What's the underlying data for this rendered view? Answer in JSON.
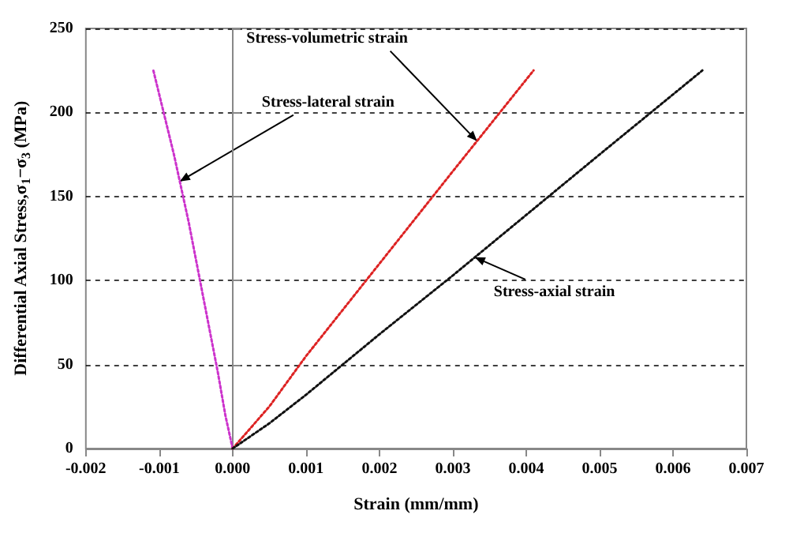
{
  "chart_data": {
    "type": "line",
    "xlabel": "Strain (mm/mm)",
    "ylabel": "Differential Axial Stress,σ$_{1}$−σ$_{3}$ (MPa)",
    "xlim": [
      -0.002,
      0.007
    ],
    "xticks": [
      -0.002,
      -0.001,
      {
        "value": 0,
        "label": "0.000"
      },
      0.001,
      0.002,
      0.003,
      0.004,
      0.005,
      0.006,
      0.007
    ],
    "ylim": [
      0,
      250
    ],
    "yticks": [
      0,
      50,
      100,
      150,
      200,
      250
    ],
    "grid": "y",
    "legend": false,
    "marker": "none",
    "line_style": "dotted",
    "series": [
      {
        "name": "Stress-lateral strain",
        "color": "#cc33cc",
        "x": [
          0,
          -0.0001,
          -0.0002,
          -0.0004,
          -0.0006,
          -0.0008,
          -0.00108
        ],
        "values": [
          0,
          20,
          45,
          90,
          135,
          175,
          225
        ]
      },
      {
        "name": "Stress-volumetric strain",
        "color": "#dd2222",
        "x": [
          0,
          0.0005,
          0.001,
          0.002,
          0.003,
          0.0041
        ],
        "values": [
          0,
          25,
          55,
          110,
          165,
          225
        ]
      },
      {
        "name": "Stress-axial strain",
        "color": "#111111",
        "x": [
          0,
          0.0005,
          0.001,
          0.002,
          0.003,
          0.004,
          0.005,
          0.0064
        ],
        "values": [
          0,
          15,
          32,
          68,
          103,
          139,
          175,
          225
        ]
      }
    ]
  }
}
